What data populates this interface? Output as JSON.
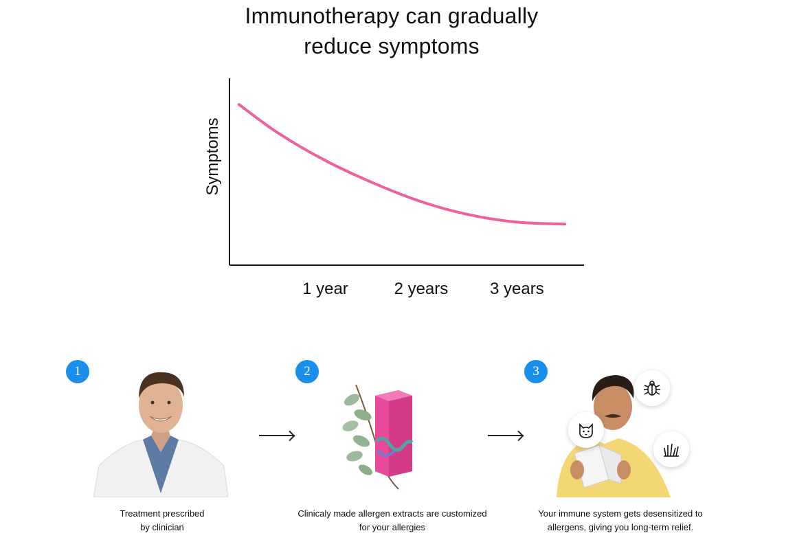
{
  "title": {
    "line1": "Immunotherapy can gradually",
    "line2": "reduce symptoms"
  },
  "chart_data": {
    "type": "line",
    "title": "Immunotherapy can gradually reduce symptoms",
    "xlabel": "",
    "ylabel": "Symptoms",
    "x_ticks": [
      "1 year",
      "2 years",
      "3 years"
    ],
    "series": [
      {
        "x": [
          0.1,
          0.5,
          1.0,
          1.5,
          2.0,
          2.5,
          3.0,
          3.5
        ],
        "values": [
          0.86,
          0.71,
          0.56,
          0.44,
          0.34,
          0.27,
          0.23,
          0.22
        ]
      }
    ],
    "xlim": [
      0,
      3.7
    ],
    "ylim": [
      0,
      1
    ],
    "grid": false,
    "color": "#f0609e"
  },
  "steps": [
    {
      "number": "1",
      "caption_line1": "Treatment prescribed",
      "caption_line2": "by clinician"
    },
    {
      "number": "2",
      "caption_line1": "Clinicaly made allergen extracts are customized",
      "caption_line2": "for your allergies"
    },
    {
      "number": "3",
      "caption_line1": "Your immune system gets desensitized to",
      "caption_line2": "allergens, giving you long-term relief."
    }
  ],
  "colors": {
    "accent": "#1a8fea",
    "curve": "#f0609e",
    "product_pink": "#e84a9a"
  },
  "icons": [
    "bug-icon",
    "cat-icon",
    "grass-icon"
  ]
}
